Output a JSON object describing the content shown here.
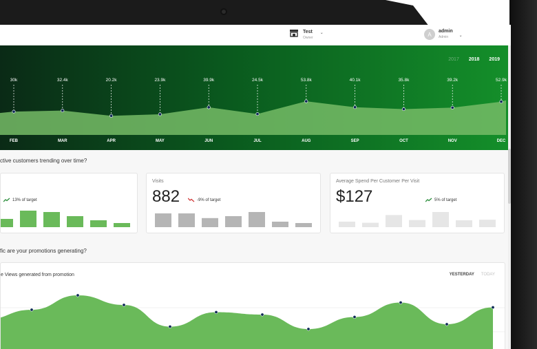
{
  "header": {
    "store": {
      "name": "Test",
      "role": "Owner",
      "icon": "store-icon"
    },
    "user": {
      "initial": "A",
      "name": "admin",
      "role": "Admin"
    }
  },
  "hero": {
    "years": [
      "2017",
      "2018",
      "2019"
    ],
    "selected_years": [
      "2018",
      "2019"
    ],
    "colors": {
      "area": "#76bb66",
      "point": "#0e2a57",
      "dashed": "#ffffff"
    }
  },
  "chart_data": [
    {
      "type": "area",
      "categories": [
        "FEB",
        "MAR",
        "APR",
        "MAY",
        "JUN",
        "JUL",
        "AUG",
        "SEP",
        "OCT",
        "NOV",
        "DEC"
      ],
      "values": [
        30,
        32.4,
        20.2,
        23.9,
        39.9,
        24.5,
        53.8,
        40.1,
        35.8,
        39.2,
        52.9
      ],
      "labels": [
        "30k",
        "32.4k",
        "20.2k",
        "23.9k",
        "39.9k",
        "24.5k",
        "53.8k",
        "40.1k",
        "35.8k",
        "39.2k",
        "52.9k"
      ]
    },
    {
      "type": "bar",
      "values": [
        3,
        6,
        5.5,
        4,
        2.5,
        1.5
      ]
    },
    {
      "type": "bar",
      "values": [
        5,
        5,
        3.3,
        4,
        5.5,
        2,
        1.5
      ]
    },
    {
      "type": "bar",
      "values": [
        2,
        1.6,
        4.4,
        2.6,
        5.5,
        2.5,
        2.7
      ]
    },
    {
      "type": "area",
      "values": [
        8,
        12,
        18,
        14,
        5,
        11,
        10,
        4,
        9,
        15,
        6,
        13
      ]
    }
  ],
  "sections": {
    "customers_question": "ctive customers trending over time?",
    "promotions_question": "fic are your promotions generating?"
  },
  "cards": [
    {
      "title": "",
      "value": "",
      "trend": "13% of target",
      "trend_dir": "up"
    },
    {
      "title": "Visits",
      "value": "882",
      "trend": "-9% of target",
      "trend_dir": "down"
    },
    {
      "title": "Average Spend Per Customer Per Visit",
      "value": "$127",
      "trend": "5% of target",
      "trend_dir": "up"
    }
  ],
  "views": {
    "title": "e Views generated from promotion",
    "tabs": [
      "YESTERDAY",
      "TODAY"
    ],
    "selected_tab": "YESTERDAY"
  }
}
